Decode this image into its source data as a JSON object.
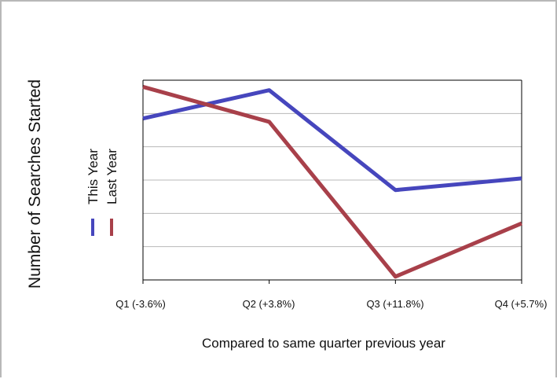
{
  "chart_data": {
    "type": "line",
    "categories": [
      "Q1 (-3.6%)",
      "Q2 (+3.8%)",
      "Q3 (+11.8%)",
      "Q4 (+5.7%)"
    ],
    "series": [
      {
        "name": "This Year",
        "values": [
          4.85,
          5.7,
          2.7,
          3.05
        ],
        "color": "#4646bd"
      },
      {
        "name": "Last Year",
        "values": [
          5.8,
          4.75,
          0.1,
          1.7
        ],
        "color": "#a8404a"
      }
    ],
    "xlabel": "Compared to same quarter previous year",
    "ylabel": "Number of Searches Started",
    "ylim": [
      0,
      6
    ],
    "y_tick_labels": false,
    "grid": "horizontal",
    "legend_position": "left-vertical"
  }
}
